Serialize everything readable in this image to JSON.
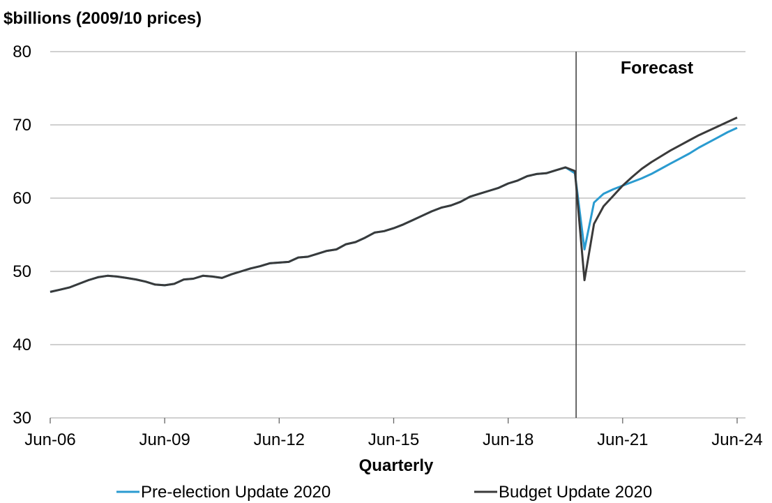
{
  "chart_data": {
    "type": "line",
    "ylabel": "$billions (2009/10 prices)",
    "xlabel": "Quarterly",
    "ylim": [
      30,
      80
    ],
    "yticks": [
      30,
      40,
      50,
      60,
      70,
      80
    ],
    "x_range": [
      "Jun-06",
      "Jun-24"
    ],
    "xticks": [
      "Jun-06",
      "Jun-09",
      "Jun-12",
      "Jun-15",
      "Jun-18",
      "Jun-21",
      "Jun-24"
    ],
    "grid": "horizontal",
    "forecast_marker": {
      "x": "Jun-20",
      "label": "Forecast"
    },
    "legend_position": "bottom",
    "series": [
      {
        "name": "Pre-election Update 2020",
        "color": "#2a9bd0",
        "points": [
          [
            "Jun-06",
            47.2
          ],
          [
            "Sep-06",
            47.5
          ],
          [
            "Dec-06",
            47.8
          ],
          [
            "Mar-07",
            48.3
          ],
          [
            "Jun-07",
            48.8
          ],
          [
            "Sep-07",
            49.2
          ],
          [
            "Dec-07",
            49.4
          ],
          [
            "Mar-08",
            49.3
          ],
          [
            "Jun-08",
            49.1
          ],
          [
            "Sep-08",
            48.9
          ],
          [
            "Dec-08",
            48.6
          ],
          [
            "Mar-09",
            48.2
          ],
          [
            "Jun-09",
            48.1
          ],
          [
            "Sep-09",
            48.3
          ],
          [
            "Dec-09",
            48.9
          ],
          [
            "Mar-10",
            49.0
          ],
          [
            "Jun-10",
            49.4
          ],
          [
            "Sep-10",
            49.3
          ],
          [
            "Dec-10",
            49.1
          ],
          [
            "Mar-11",
            49.6
          ],
          [
            "Jun-11",
            50.0
          ],
          [
            "Sep-11",
            50.4
          ],
          [
            "Dec-11",
            50.7
          ],
          [
            "Mar-12",
            51.1
          ],
          [
            "Jun-12",
            51.2
          ],
          [
            "Sep-12",
            51.3
          ],
          [
            "Dec-12",
            51.9
          ],
          [
            "Mar-13",
            52.0
          ],
          [
            "Jun-13",
            52.4
          ],
          [
            "Sep-13",
            52.8
          ],
          [
            "Dec-13",
            53.0
          ],
          [
            "Mar-14",
            53.7
          ],
          [
            "Jun-14",
            54.0
          ],
          [
            "Sep-14",
            54.6
          ],
          [
            "Dec-14",
            55.3
          ],
          [
            "Mar-15",
            55.5
          ],
          [
            "Jun-15",
            55.9
          ],
          [
            "Sep-15",
            56.4
          ],
          [
            "Dec-15",
            57.0
          ],
          [
            "Mar-16",
            57.6
          ],
          [
            "Jun-16",
            58.2
          ],
          [
            "Sep-16",
            58.7
          ],
          [
            "Dec-16",
            59.0
          ],
          [
            "Mar-17",
            59.5
          ],
          [
            "Jun-17",
            60.2
          ],
          [
            "Sep-17",
            60.6
          ],
          [
            "Dec-17",
            61.0
          ],
          [
            "Mar-18",
            61.4
          ],
          [
            "Jun-18",
            62.0
          ],
          [
            "Sep-18",
            62.4
          ],
          [
            "Dec-18",
            63.0
          ],
          [
            "Mar-19",
            63.3
          ],
          [
            "Jun-19",
            63.4
          ],
          [
            "Sep-19",
            63.8
          ],
          [
            "Dec-19",
            64.2
          ],
          [
            "Mar-20",
            63.4
          ],
          [
            "Jun-20",
            53.0
          ],
          [
            "Sep-20",
            59.4
          ],
          [
            "Dec-20",
            60.6
          ],
          [
            "Mar-21",
            61.2
          ],
          [
            "Jun-21",
            61.7
          ],
          [
            "Sep-21",
            62.2
          ],
          [
            "Dec-21",
            62.7
          ],
          [
            "Mar-22",
            63.3
          ],
          [
            "Jun-22",
            64.0
          ],
          [
            "Sep-22",
            64.7
          ],
          [
            "Dec-22",
            65.4
          ],
          [
            "Mar-23",
            66.1
          ],
          [
            "Jun-23",
            66.9
          ],
          [
            "Sep-23",
            67.6
          ],
          [
            "Dec-23",
            68.3
          ],
          [
            "Mar-24",
            69.0
          ],
          [
            "Jun-24",
            69.6
          ]
        ]
      },
      {
        "name": "Budget Update 2020",
        "color": "#3a3a3a",
        "points": [
          [
            "Jun-06",
            47.2
          ],
          [
            "Sep-06",
            47.5
          ],
          [
            "Dec-06",
            47.8
          ],
          [
            "Mar-07",
            48.3
          ],
          [
            "Jun-07",
            48.8
          ],
          [
            "Sep-07",
            49.2
          ],
          [
            "Dec-07",
            49.4
          ],
          [
            "Mar-08",
            49.3
          ],
          [
            "Jun-08",
            49.1
          ],
          [
            "Sep-08",
            48.9
          ],
          [
            "Dec-08",
            48.6
          ],
          [
            "Mar-09",
            48.2
          ],
          [
            "Jun-09",
            48.1
          ],
          [
            "Sep-09",
            48.3
          ],
          [
            "Dec-09",
            48.9
          ],
          [
            "Mar-10",
            49.0
          ],
          [
            "Jun-10",
            49.4
          ],
          [
            "Sep-10",
            49.3
          ],
          [
            "Dec-10",
            49.1
          ],
          [
            "Mar-11",
            49.6
          ],
          [
            "Jun-11",
            50.0
          ],
          [
            "Sep-11",
            50.4
          ],
          [
            "Dec-11",
            50.7
          ],
          [
            "Mar-12",
            51.1
          ],
          [
            "Jun-12",
            51.2
          ],
          [
            "Sep-12",
            51.3
          ],
          [
            "Dec-12",
            51.9
          ],
          [
            "Mar-13",
            52.0
          ],
          [
            "Jun-13",
            52.4
          ],
          [
            "Sep-13",
            52.8
          ],
          [
            "Dec-13",
            53.0
          ],
          [
            "Mar-14",
            53.7
          ],
          [
            "Jun-14",
            54.0
          ],
          [
            "Sep-14",
            54.6
          ],
          [
            "Dec-14",
            55.3
          ],
          [
            "Mar-15",
            55.5
          ],
          [
            "Jun-15",
            55.9
          ],
          [
            "Sep-15",
            56.4
          ],
          [
            "Dec-15",
            57.0
          ],
          [
            "Mar-16",
            57.6
          ],
          [
            "Jun-16",
            58.2
          ],
          [
            "Sep-16",
            58.7
          ],
          [
            "Dec-16",
            59.0
          ],
          [
            "Mar-17",
            59.5
          ],
          [
            "Jun-17",
            60.2
          ],
          [
            "Sep-17",
            60.6
          ],
          [
            "Dec-17",
            61.0
          ],
          [
            "Mar-18",
            61.4
          ],
          [
            "Jun-18",
            62.0
          ],
          [
            "Sep-18",
            62.4
          ],
          [
            "Dec-18",
            63.0
          ],
          [
            "Mar-19",
            63.3
          ],
          [
            "Jun-19",
            63.4
          ],
          [
            "Sep-19",
            63.8
          ],
          [
            "Dec-19",
            64.2
          ],
          [
            "Mar-20",
            63.7
          ],
          [
            "Jun-20",
            48.8
          ],
          [
            "Sep-20",
            56.5
          ],
          [
            "Dec-20",
            58.9
          ],
          [
            "Mar-21",
            60.3
          ],
          [
            "Jun-21",
            61.7
          ],
          [
            "Sep-21",
            62.9
          ],
          [
            "Dec-21",
            64.0
          ],
          [
            "Mar-22",
            64.9
          ],
          [
            "Jun-22",
            65.7
          ],
          [
            "Sep-22",
            66.5
          ],
          [
            "Dec-22",
            67.2
          ],
          [
            "Mar-23",
            67.9
          ],
          [
            "Jun-23",
            68.6
          ],
          [
            "Sep-23",
            69.2
          ],
          [
            "Dec-23",
            69.8
          ],
          [
            "Mar-24",
            70.4
          ],
          [
            "Jun-24",
            71.0
          ]
        ]
      }
    ]
  }
}
